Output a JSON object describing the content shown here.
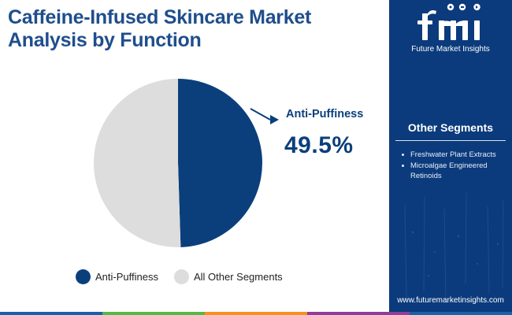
{
  "header": {
    "title_line1": "Caffeine-Infused Skincare Market",
    "title_line2": "Analysis by Function"
  },
  "chart_data": {
    "type": "pie",
    "title": "Caffeine-Infused Skincare Market Analysis by Function",
    "slices": [
      {
        "name": "Anti-Puffiness",
        "value": 49.5,
        "color": "#0b3f7c"
      },
      {
        "name": "All Other Segments",
        "value": 50.5,
        "color": "#dddddd"
      }
    ],
    "legend_position": "bottom",
    "callout": {
      "label": "Anti-Puffiness",
      "value": "49.5%"
    }
  },
  "legend": [
    {
      "label": "Anti-Puffiness",
      "color": "#0b3f7c"
    },
    {
      "label": "All Other Segments",
      "color": "#dddddd"
    }
  ],
  "sidebar": {
    "logo_text": "fmi",
    "logo_caption": "Future Market Insights",
    "heading": "Other Segments",
    "items": [
      "Freshwater Plant Extracts",
      "Microalgae Engineered Retinoids"
    ],
    "website": "www.futuremarketinsights.com",
    "background": "#0b3b7c"
  },
  "bottom_bar_colors": [
    "#1c5fab",
    "#55b847",
    "#f6921e",
    "#8e3f97",
    "#1c5fab"
  ]
}
